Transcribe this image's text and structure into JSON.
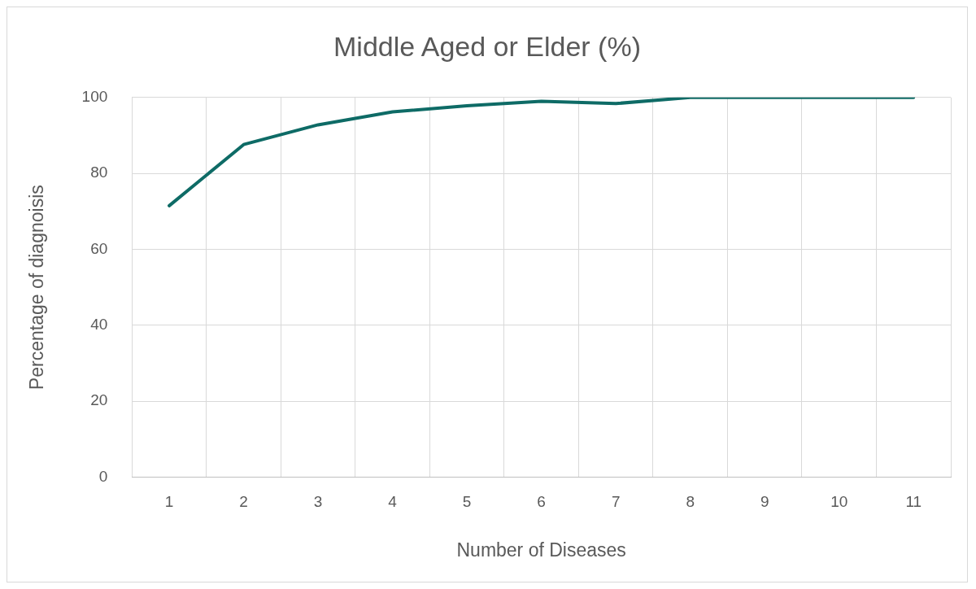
{
  "chart_data": {
    "type": "line",
    "title": "Middle Aged or Elder (%)",
    "xlabel": "Number of Diseases",
    "ylabel": "Percentage of diagnoisis",
    "categories": [
      "1",
      "2",
      "3",
      "4",
      "5",
      "6",
      "7",
      "8",
      "9",
      "10",
      "11"
    ],
    "series": [
      {
        "color": "#0e6b66",
        "values": [
          71.5,
          87.6,
          92.8,
          96.2,
          97.8,
          99,
          98.4,
          100,
          100,
          100,
          100
        ]
      }
    ],
    "ylim": [
      0,
      100
    ],
    "yticks": [
      0,
      20,
      40,
      60,
      80,
      100
    ],
    "grid": true,
    "legend": false,
    "marker": "none",
    "line_style": "solid"
  }
}
